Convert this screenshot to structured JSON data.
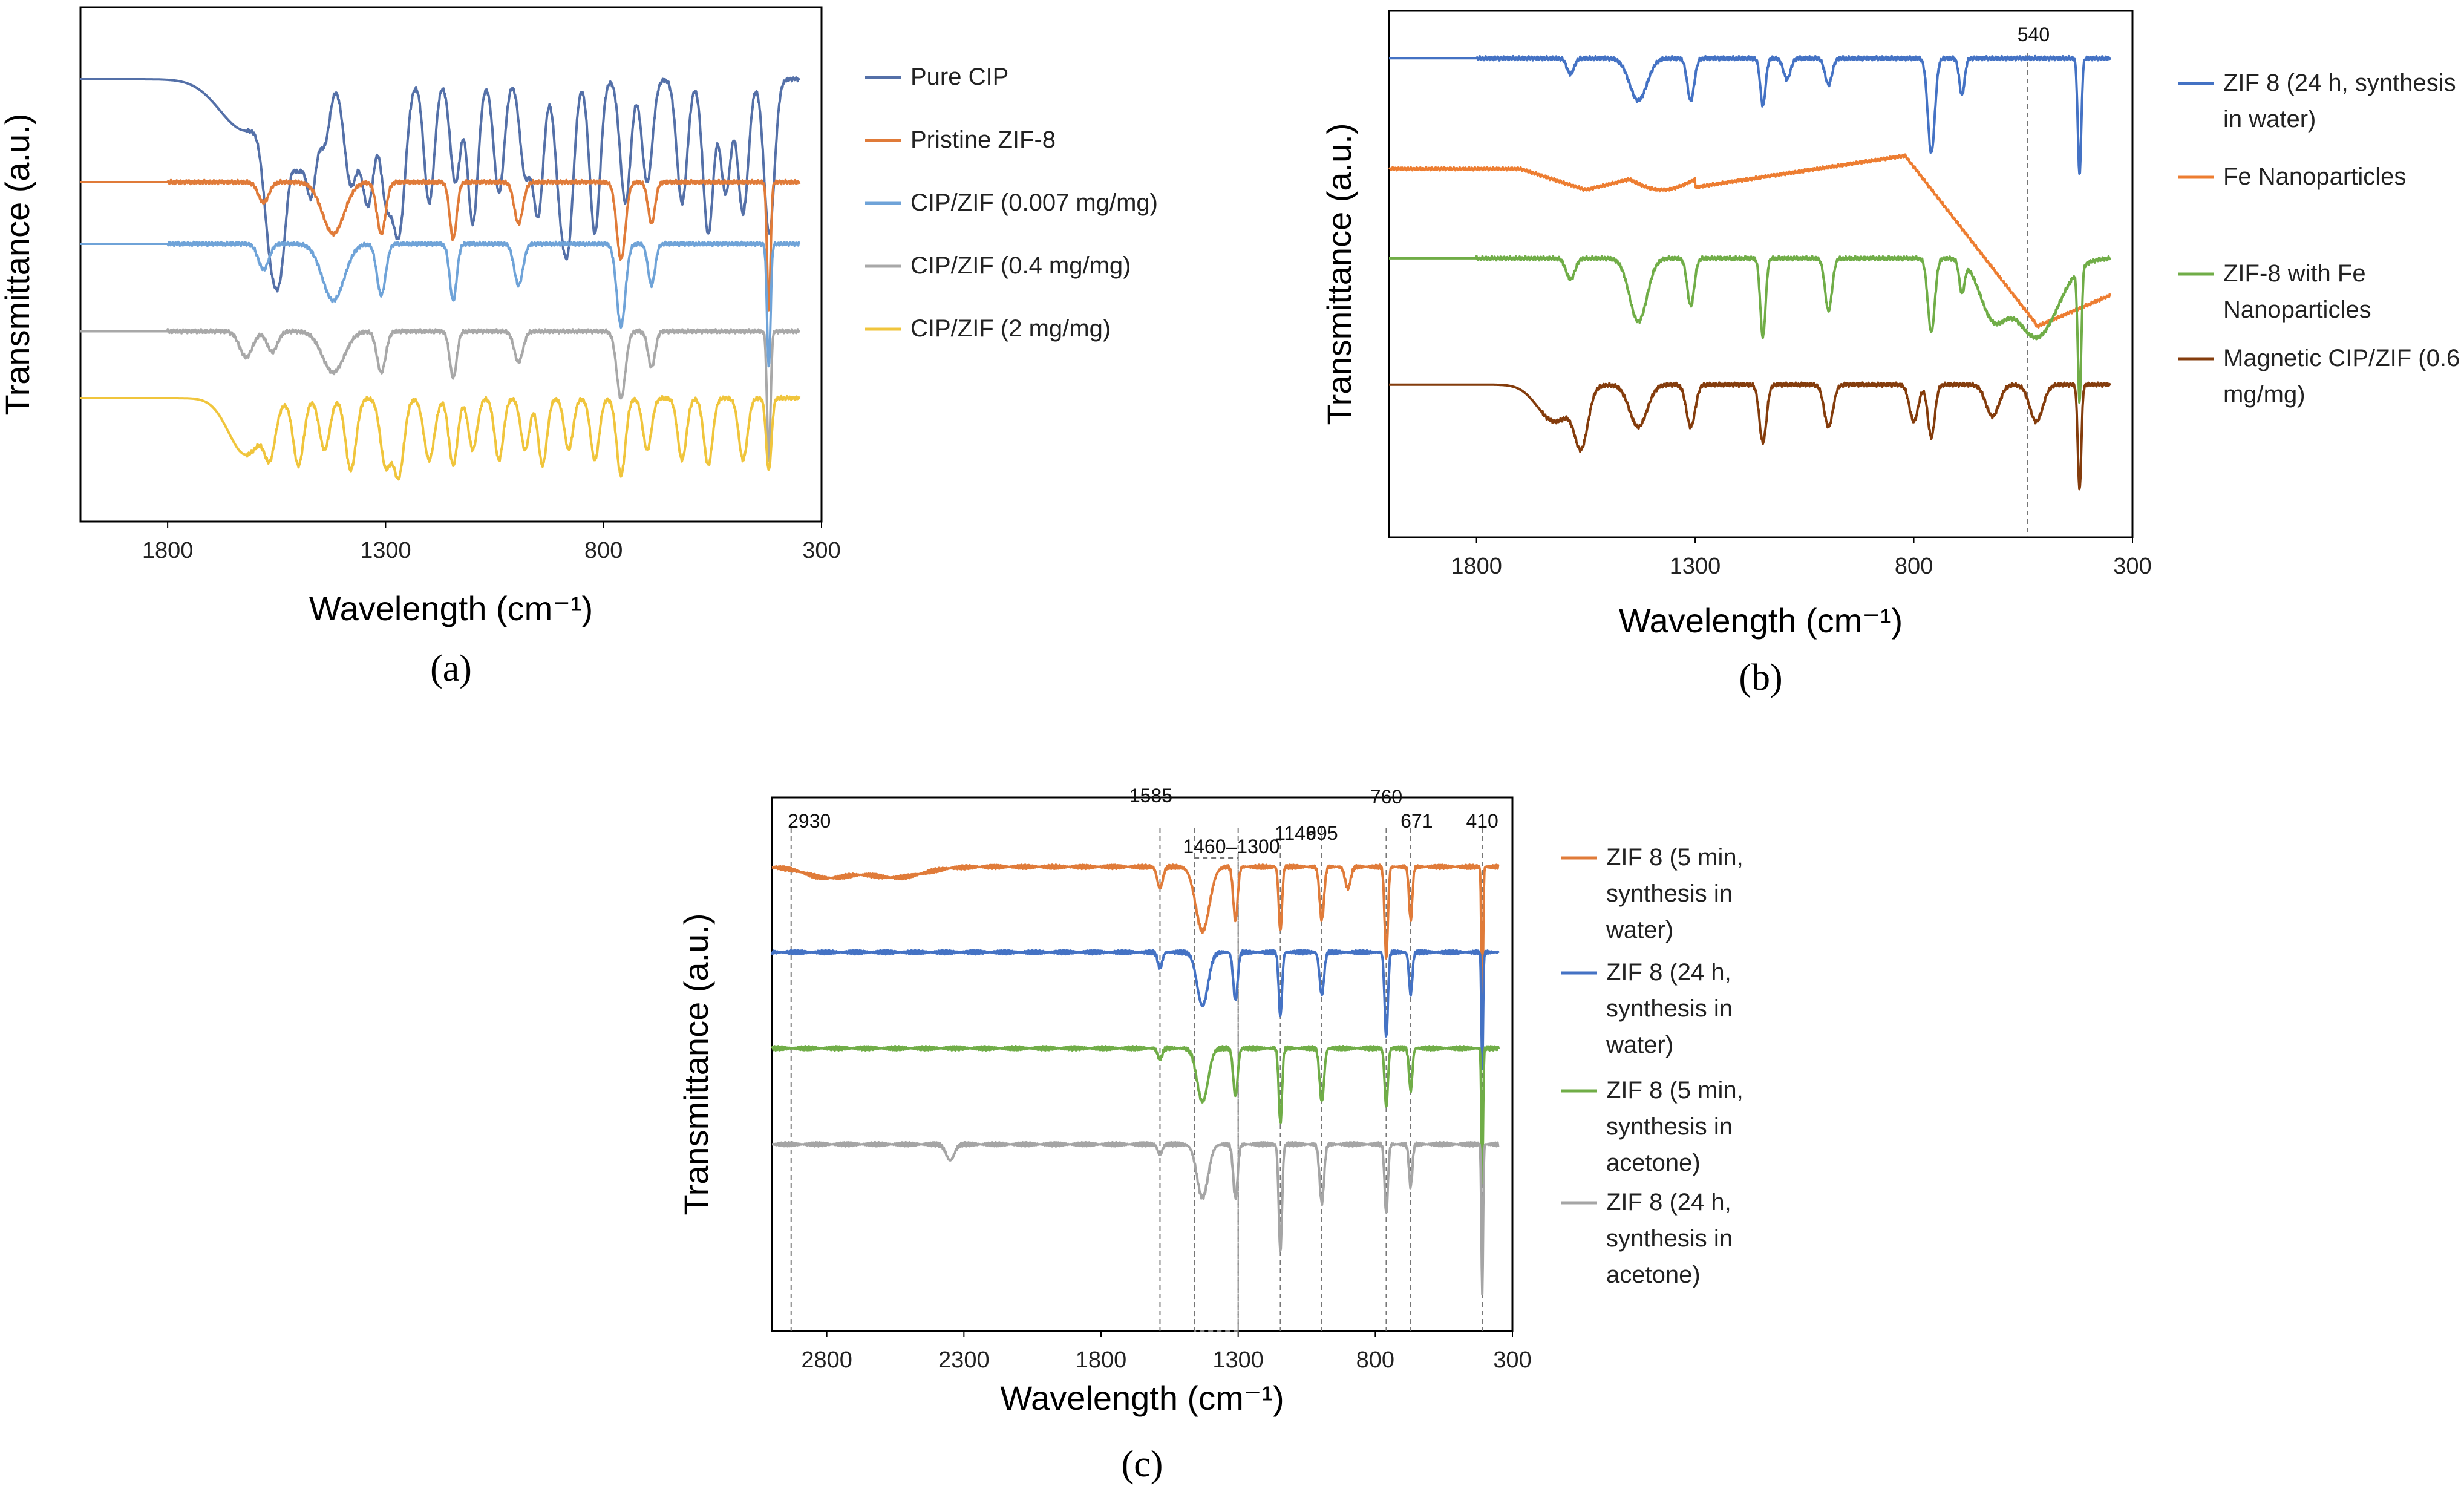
{
  "figure": {
    "panels": [
      "(a)",
      "(b)",
      "(c)"
    ]
  },
  "chart_data": [
    {
      "id": "a",
      "type": "line",
      "caption": "(a)",
      "xlabel": "Wavelength (cm⁻¹)",
      "ylabel": "Transmittance (a.u.)",
      "xlim": [
        2000,
        300
      ],
      "xticks": [
        1800,
        1300,
        800,
        300
      ],
      "x_start": 2000,
      "x_end": 350,
      "legend": "right",
      "annotations": [],
      "series": [
        {
          "name": "Pure CIP",
          "color": "#5470a8",
          "offset": 0.86,
          "flat_until": 1620,
          "peaks": [
            [
              1620,
              0.1,
              60
            ],
            [
              1565,
              0.22,
              15
            ],
            [
              1540,
              0.28,
              15
            ],
            [
              1500,
              0.15,
              15
            ],
            [
              1470,
              0.2,
              12
            ],
            [
              1440,
              0.12,
              12
            ],
            [
              1380,
              0.2,
              15
            ],
            [
              1340,
              0.24,
              15
            ],
            [
              1300,
              0.2,
              12
            ],
            [
              1270,
              0.3,
              15
            ],
            [
              1200,
              0.24,
              12
            ],
            [
              1140,
              0.2,
              12
            ],
            [
              1100,
              0.28,
              12
            ],
            [
              1040,
              0.22,
              12
            ],
            [
              980,
              0.18,
              12
            ],
            [
              950,
              0.26,
              12
            ],
            [
              900,
              0.2,
              12
            ],
            [
              880,
              0.28,
              12
            ],
            [
              820,
              0.3,
              12
            ],
            [
              750,
              0.24,
              12
            ],
            [
              700,
              0.2,
              12
            ],
            [
              620,
              0.24,
              12
            ],
            [
              560,
              0.3,
              12
            ],
            [
              520,
              0.22,
              12
            ],
            [
              480,
              0.26,
              12
            ],
            [
              420,
              0.3,
              12
            ]
          ]
        },
        {
          "name": "Pristine ZIF-8",
          "color": "#e07b39",
          "offset": 0.66,
          "flat_until": 1800,
          "peaks": [
            [
              1580,
              0.04,
              12
            ],
            [
              1420,
              0.1,
              25
            ],
            [
              1310,
              0.1,
              10
            ],
            [
              1145,
              0.11,
              8
            ],
            [
              995,
              0.08,
              10
            ],
            [
              760,
              0.15,
              10
            ],
            [
              690,
              0.08,
              8
            ],
            [
              421,
              0.25,
              4
            ]
          ]
        },
        {
          "name": "CIP/ZIF (0.007 mg/mg)",
          "color": "#6fa3d8",
          "offset": 0.54,
          "flat_until": 1800,
          "peaks": [
            [
              1580,
              0.05,
              12
            ],
            [
              1420,
              0.11,
              25
            ],
            [
              1310,
              0.1,
              10
            ],
            [
              1145,
              0.11,
              8
            ],
            [
              995,
              0.08,
              10
            ],
            [
              760,
              0.16,
              10
            ],
            [
              690,
              0.08,
              8
            ],
            [
              421,
              0.24,
              4
            ]
          ]
        },
        {
          "name": "CIP/ZIF (0.4 mg/mg)",
          "color": "#a8a8a8",
          "offset": 0.37,
          "flat_until": 1800,
          "peaks": [
            [
              1620,
              0.05,
              15
            ],
            [
              1560,
              0.04,
              12
            ],
            [
              1420,
              0.08,
              25
            ],
            [
              1310,
              0.08,
              10
            ],
            [
              1145,
              0.09,
              8
            ],
            [
              995,
              0.06,
              10
            ],
            [
              760,
              0.13,
              10
            ],
            [
              690,
              0.07,
              8
            ],
            [
              421,
              0.25,
              4
            ]
          ]
        },
        {
          "name": "CIP/ZIF (2 mg/mg)",
          "color": "#f0c53c",
          "offset": 0.24,
          "flat_until": 1620,
          "peaks": [
            [
              1620,
              0.11,
              40
            ],
            [
              1565,
              0.08,
              12
            ],
            [
              1500,
              0.13,
              12
            ],
            [
              1440,
              0.1,
              12
            ],
            [
              1380,
              0.14,
              12
            ],
            [
              1300,
              0.13,
              12
            ],
            [
              1270,
              0.15,
              12
            ],
            [
              1200,
              0.12,
              12
            ],
            [
              1145,
              0.13,
              10
            ],
            [
              1100,
              0.1,
              10
            ],
            [
              1040,
              0.12,
              10
            ],
            [
              980,
              0.1,
              10
            ],
            [
              940,
              0.13,
              10
            ],
            [
              880,
              0.1,
              10
            ],
            [
              820,
              0.12,
              10
            ],
            [
              760,
              0.15,
              10
            ],
            [
              700,
              0.1,
              10
            ],
            [
              620,
              0.12,
              10
            ],
            [
              560,
              0.13,
              10
            ],
            [
              480,
              0.12,
              10
            ],
            [
              421,
              0.14,
              6
            ]
          ]
        }
      ]
    },
    {
      "id": "b",
      "type": "line",
      "caption": "(b)",
      "xlabel": "Wavelength (cm⁻¹)",
      "ylabel": "Transmittance (a.u.)",
      "xlim": [
        2000,
        300
      ],
      "xticks": [
        1800,
        1300,
        800,
        300
      ],
      "x_start": 2000,
      "x_end": 350,
      "legend": "right",
      "annotations": [
        {
          "x": 540,
          "label": "540"
        }
      ],
      "series": [
        {
          "name": "ZIF 8 (24 h, synthesis in water)",
          "color": "#4472c4",
          "offset": 0.91,
          "flat_until": 1800,
          "peaks": [
            [
              1585,
              0.03,
              8
            ],
            [
              1430,
              0.08,
              20
            ],
            [
              1310,
              0.08,
              8
            ],
            [
              1145,
              0.09,
              6
            ],
            [
              1090,
              0.04,
              8
            ],
            [
              995,
              0.05,
              8
            ],
            [
              760,
              0.18,
              8
            ],
            [
              690,
              0.07,
              6
            ],
            [
              421,
              0.22,
              4
            ]
          ]
        },
        {
          "name": "Fe Nanoparticles",
          "color": "#ed7d31",
          "offset": 0.7,
          "flat_until": 2000,
          "custom": "fe"
        },
        {
          "name": "ZIF-8 with Fe Nanoparticles",
          "color": "#70ad47",
          "offset": 0.53,
          "flat_until": 1800,
          "peaks": [
            [
              1585,
              0.04,
              10
            ],
            [
              1430,
              0.12,
              20
            ],
            [
              1310,
              0.09,
              8
            ],
            [
              1145,
              0.15,
              6
            ],
            [
              995,
              0.1,
              8
            ],
            [
              760,
              0.14,
              8
            ],
            [
              690,
              0.06,
              6
            ],
            [
              620,
              0.1,
              30
            ],
            [
              520,
              0.15,
              50
            ],
            [
              421,
              0.25,
              4
            ]
          ]
        },
        {
          "name": "Magnetic CIP/ZIF (0.6 mg/mg)",
          "color": "#843c0c",
          "offset": 0.29,
          "flat_until": 1650,
          "peaks": [
            [
              1620,
              0.07,
              40
            ],
            [
              1560,
              0.1,
              15
            ],
            [
              1430,
              0.08,
              20
            ],
            [
              1310,
              0.08,
              10
            ],
            [
              1145,
              0.11,
              8
            ],
            [
              995,
              0.08,
              10
            ],
            [
              800,
              0.07,
              10
            ],
            [
              760,
              0.1,
              8
            ],
            [
              620,
              0.06,
              15
            ],
            [
              520,
              0.07,
              15
            ],
            [
              421,
              0.2,
              4
            ]
          ]
        }
      ]
    },
    {
      "id": "c",
      "type": "line",
      "caption": "(c)",
      "xlabel": "Wavelength (cm⁻¹)",
      "ylabel": "Transmittance (a.u.)",
      "xlim": [
        3000,
        300
      ],
      "xticks": [
        2800,
        2300,
        1800,
        1300,
        800,
        300
      ],
      "x_start": 3000,
      "x_end": 350,
      "legend": "right",
      "annotations": [
        {
          "x": 2930,
          "label": "2930"
        },
        {
          "x": 1585,
          "label": "1585"
        },
        {
          "x": 1460,
          "label": ""
        },
        {
          "x": 1300,
          "label": ""
        },
        {
          "x": 1146,
          "label": "1146"
        },
        {
          "x": 995,
          "label": "995"
        },
        {
          "x": 760,
          "label": "760"
        },
        {
          "x": 671,
          "label": "671"
        },
        {
          "x": 410,
          "label": "410"
        }
      ],
      "range_annotation": {
        "from": 1460,
        "to": 1300,
        "label": "1460–1300"
      },
      "series": [
        {
          "name": "ZIF 8 (5 min, synthesis in water)",
          "color": "#e07b39",
          "offset": 0.87,
          "flat_until": 3000,
          "peaks": [
            [
              2800,
              0.02,
              80
            ],
            [
              2550,
              0.02,
              100
            ],
            [
              1585,
              0.04,
              10
            ],
            [
              1430,
              0.12,
              25
            ],
            [
              1310,
              0.1,
              8
            ],
            [
              1146,
              0.12,
              6
            ],
            [
              995,
              0.1,
              8
            ],
            [
              900,
              0.04,
              10
            ],
            [
              760,
              0.17,
              6
            ],
            [
              671,
              0.1,
              6
            ],
            [
              410,
              0.3,
              3
            ]
          ]
        },
        {
          "name": "ZIF 8 (24 h, synthesis in water)",
          "color": "#4472c4",
          "offset": 0.71,
          "flat_until": 3000,
          "peaks": [
            [
              1585,
              0.03,
              8
            ],
            [
              1430,
              0.1,
              20
            ],
            [
              1310,
              0.09,
              8
            ],
            [
              1146,
              0.12,
              6
            ],
            [
              995,
              0.08,
              8
            ],
            [
              760,
              0.16,
              6
            ],
            [
              671,
              0.08,
              6
            ],
            [
              410,
              0.22,
              3
            ]
          ]
        },
        {
          "name": "ZIF 8 (5 min, synthesis in acetone)",
          "color": "#70ad47",
          "offset": 0.53,
          "flat_until": 3000,
          "peaks": [
            [
              1585,
              0.02,
              8
            ],
            [
              1430,
              0.1,
              20
            ],
            [
              1310,
              0.09,
              8
            ],
            [
              1146,
              0.14,
              6
            ],
            [
              995,
              0.1,
              8
            ],
            [
              760,
              0.11,
              6
            ],
            [
              671,
              0.08,
              6
            ],
            [
              410,
              0.25,
              3
            ]
          ]
        },
        {
          "name": "ZIF 8 (24 h, synthesis in acetone)",
          "color": "#a5a5a5",
          "offset": 0.35,
          "flat_until": 3000,
          "peaks": [
            [
              2350,
              0.03,
              15
            ],
            [
              1585,
              0.02,
              8
            ],
            [
              1430,
              0.1,
              20
            ],
            [
              1310,
              0.1,
              8
            ],
            [
              1146,
              0.2,
              6
            ],
            [
              995,
              0.11,
              8
            ],
            [
              760,
              0.13,
              6
            ],
            [
              671,
              0.08,
              6
            ],
            [
              410,
              0.28,
              3
            ]
          ]
        }
      ]
    }
  ]
}
